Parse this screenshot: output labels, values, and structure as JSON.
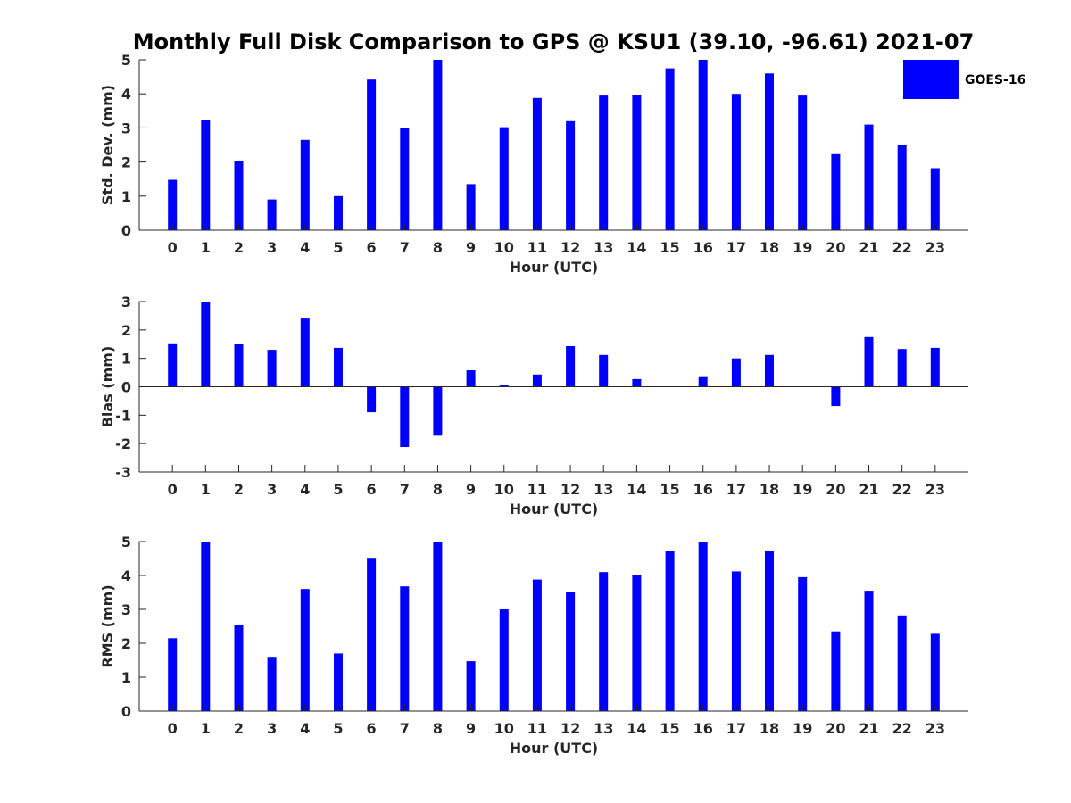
{
  "title": "Monthly Full Disk Comparison to GPS @ KSU1 (39.10, -96.61) 2021-07",
  "legend": {
    "label": "GOES-16",
    "color": "#0000ff"
  },
  "chart_data": [
    {
      "type": "bar",
      "categories": [
        "0",
        "1",
        "2",
        "3",
        "4",
        "5",
        "6",
        "7",
        "8",
        "9",
        "10",
        "11",
        "12",
        "13",
        "14",
        "15",
        "16",
        "17",
        "18",
        "19",
        "20",
        "21",
        "22",
        "23"
      ],
      "series": [
        {
          "name": "GOES-16",
          "values": [
            1.48,
            3.23,
            2.02,
            0.9,
            2.65,
            1.0,
            4.42,
            3.0,
            5.0,
            1.35,
            3.02,
            3.88,
            3.2,
            3.95,
            3.98,
            4.75,
            5.0,
            4.0,
            4.6,
            3.95,
            2.23,
            3.1,
            2.5,
            1.82
          ]
        }
      ],
      "xlabel": "Hour (UTC)",
      "ylabel": "Std. Dev. (mm)",
      "ylim": [
        0,
        5
      ],
      "yticks": [
        0,
        1,
        2,
        3,
        4,
        5
      ],
      "grid": false,
      "legend_position": "top-right"
    },
    {
      "type": "bar",
      "categories": [
        "0",
        "1",
        "2",
        "3",
        "4",
        "5",
        "6",
        "7",
        "8",
        "9",
        "10",
        "11",
        "12",
        "13",
        "14",
        "15",
        "16",
        "17",
        "18",
        "19",
        "20",
        "21",
        "22",
        "23"
      ],
      "series": [
        {
          "name": "GOES-16",
          "values": [
            1.53,
            3.0,
            1.5,
            1.3,
            2.43,
            1.37,
            -0.9,
            -2.12,
            -1.72,
            0.58,
            0.05,
            0.43,
            1.43,
            1.12,
            0.27,
            0.0,
            0.37,
            1.0,
            1.12,
            0.0,
            -0.68,
            1.75,
            1.33,
            1.37
          ]
        }
      ],
      "xlabel": "Hour (UTC)",
      "ylabel": "Bias (mm)",
      "ylim": [
        -3,
        3
      ],
      "yticks": [
        -3,
        -2,
        -1,
        0,
        1,
        2,
        3
      ],
      "grid": false
    },
    {
      "type": "bar",
      "categories": [
        "0",
        "1",
        "2",
        "3",
        "4",
        "5",
        "6",
        "7",
        "8",
        "9",
        "10",
        "11",
        "12",
        "13",
        "14",
        "15",
        "16",
        "17",
        "18",
        "19",
        "20",
        "21",
        "22",
        "23"
      ],
      "series": [
        {
          "name": "GOES-16",
          "values": [
            2.15,
            5.0,
            2.53,
            1.6,
            3.6,
            1.7,
            4.52,
            3.68,
            5.0,
            1.47,
            3.0,
            3.88,
            3.52,
            4.1,
            4.0,
            4.73,
            5.0,
            4.12,
            4.73,
            3.95,
            2.35,
            3.55,
            2.82,
            2.28
          ]
        }
      ],
      "xlabel": "Hour (UTC)",
      "ylabel": "RMS (mm)",
      "ylim": [
        0,
        5
      ],
      "yticks": [
        0,
        1,
        2,
        3,
        4,
        5
      ],
      "grid": false
    }
  ]
}
